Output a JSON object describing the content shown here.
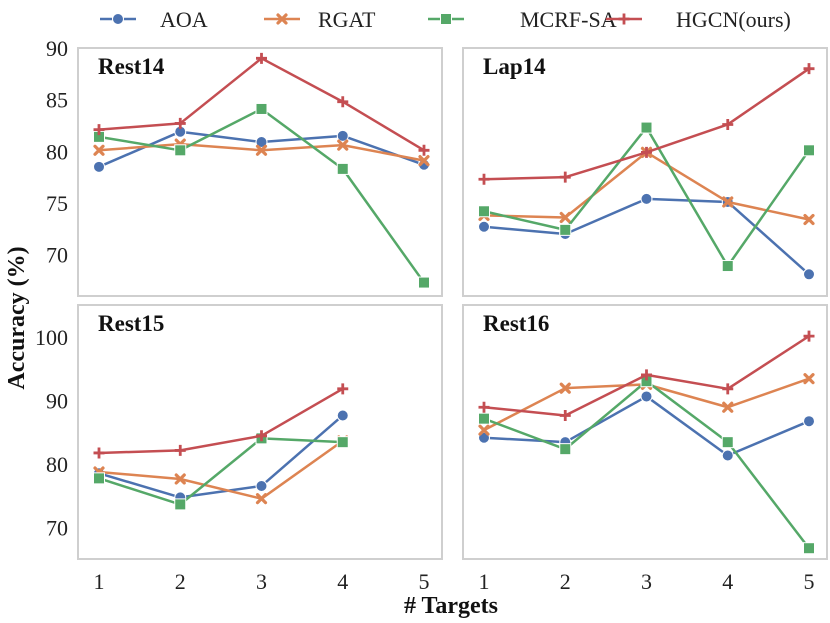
{
  "chart_data": {
    "type": "line",
    "xlabel": "# Targets",
    "ylabel": "Accuracy (%)",
    "legend": [
      {
        "name": "AOA",
        "color": "#4c72b0",
        "marker": "circle"
      },
      {
        "name": "RGAT",
        "color": "#dd8452",
        "marker": "x"
      },
      {
        "name": "MCRF-SA",
        "color": "#55a868",
        "marker": "square"
      },
      {
        "name": "HGCN(ours)",
        "color": "#c44e52",
        "marker": "plus"
      }
    ],
    "panels": [
      {
        "title": "Rest14",
        "x": [
          1,
          2,
          3,
          4,
          5
        ],
        "xticks": [
          "1",
          "2",
          "3",
          "4",
          "5"
        ],
        "ylim": [
          66,
          90
        ],
        "yticks": [
          70,
          75,
          80,
          85,
          90
        ],
        "ytick_labels": [
          "70",
          "75",
          "80",
          "85",
          "90"
        ],
        "series": [
          {
            "name": "AOA",
            "values": [
              78.5,
              81.9,
              80.9,
              81.5,
              78.7
            ]
          },
          {
            "name": "RGAT",
            "values": [
              80.1,
              80.7,
              80.1,
              80.6,
              79.1
            ]
          },
          {
            "name": "MCRF-SA",
            "values": [
              81.4,
              80.1,
              84.1,
              78.3,
              67.3
            ]
          },
          {
            "name": "HGCN(ours)",
            "values": [
              82.1,
              82.7,
              89.0,
              84.8,
              80.1
            ]
          }
        ]
      },
      {
        "title": "Lap14",
        "x": [
          1,
          2,
          3,
          4,
          5
        ],
        "xticks": [
          "1",
          "2",
          "3",
          "4",
          "5"
        ],
        "ylim": [
          66,
          90
        ],
        "yticks": [
          70,
          75,
          80,
          85,
          90
        ],
        "ytick_labels": [
          "",
          "",
          "",
          "",
          ""
        ],
        "series": [
          {
            "name": "AOA",
            "values": [
              72.7,
              72.0,
              75.4,
              75.1,
              68.1
            ]
          },
          {
            "name": "RGAT",
            "values": [
              73.8,
              73.6,
              79.9,
              75.1,
              73.4
            ]
          },
          {
            "name": "MCRF-SA",
            "values": [
              74.2,
              72.4,
              82.3,
              68.9,
              80.1
            ]
          },
          {
            "name": "HGCN(ours)",
            "values": [
              77.3,
              77.5,
              79.9,
              82.6,
              88.0
            ]
          }
        ]
      },
      {
        "title": "Rest15",
        "x": [
          1,
          2,
          3,
          4,
          5
        ],
        "xticks": [
          "1",
          "2",
          "3",
          "4",
          "5"
        ],
        "ylim": [
          65,
          105
        ],
        "yticks": [
          70,
          80,
          90,
          100
        ],
        "ytick_labels": [
          "70",
          "80",
          "90",
          "100"
        ],
        "series": [
          {
            "name": "AOA",
            "values": [
              78.5,
              74.7,
              76.5,
              87.6,
              null
            ]
          },
          {
            "name": "RGAT",
            "values": [
              78.7,
              77.6,
              74.5,
              83.6,
              null
            ]
          },
          {
            "name": "MCRF-SA",
            "values": [
              77.7,
              73.6,
              84.0,
              83.4,
              null
            ]
          },
          {
            "name": "HGCN(ours)",
            "values": [
              81.7,
              82.1,
              84.4,
              91.8,
              null
            ]
          }
        ]
      },
      {
        "title": "Rest16",
        "x": [
          1,
          2,
          3,
          4,
          5
        ],
        "xticks": [
          "1",
          "2",
          "3",
          "4",
          "5"
        ],
        "ylim": [
          65,
          105
        ],
        "yticks": [
          70,
          80,
          90,
          100
        ],
        "ytick_labels": [
          "",
          "",
          "",
          ""
        ],
        "series": [
          {
            "name": "AOA",
            "values": [
              84.1,
              83.4,
              90.6,
              81.3,
              86.7
            ]
          },
          {
            "name": "RGAT",
            "values": [
              85.3,
              91.9,
              92.5,
              88.9,
              93.4
            ]
          },
          {
            "name": "MCRF-SA",
            "values": [
              87.1,
              82.3,
              93.0,
              83.4,
              66.7
            ]
          },
          {
            "name": "HGCN(ours)",
            "values": [
              88.9,
              87.6,
              94.0,
              91.8,
              100.1
            ]
          }
        ]
      }
    ]
  }
}
